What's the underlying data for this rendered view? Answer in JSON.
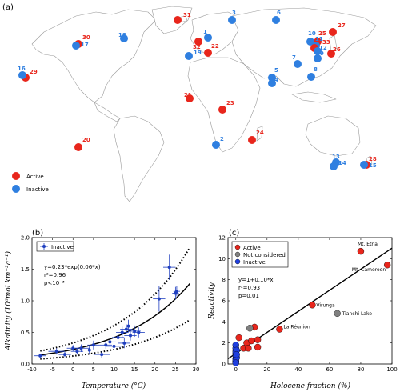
{
  "colors": {
    "active": "#e8261c",
    "inactive": "#2f7fe0",
    "not_considered": "#808080",
    "blue_fit": "#1f3fbf"
  },
  "panel_a": {
    "label": "(a)",
    "legend": {
      "active": "Active",
      "inactive": "Inactive"
    },
    "sites": [
      {
        "id": "1",
        "status": "inactive"
      },
      {
        "id": "2",
        "status": "inactive"
      },
      {
        "id": "3",
        "status": "inactive"
      },
      {
        "id": "4",
        "status": "inactive"
      },
      {
        "id": "5",
        "status": "inactive"
      },
      {
        "id": "6",
        "status": "inactive"
      },
      {
        "id": "7",
        "status": "inactive"
      },
      {
        "id": "8",
        "status": "inactive"
      },
      {
        "id": "9",
        "status": "inactive"
      },
      {
        "id": "10",
        "status": "inactive"
      },
      {
        "id": "11",
        "status": "inactive"
      },
      {
        "id": "12",
        "status": "inactive"
      },
      {
        "id": "13",
        "status": "inactive"
      },
      {
        "id": "14",
        "status": "inactive"
      },
      {
        "id": "15",
        "status": "inactive"
      },
      {
        "id": "16",
        "status": "inactive"
      },
      {
        "id": "17",
        "status": "inactive"
      },
      {
        "id": "18",
        "status": "inactive"
      },
      {
        "id": "19",
        "status": "inactive"
      },
      {
        "id": "20",
        "status": "active"
      },
      {
        "id": "21",
        "status": "active"
      },
      {
        "id": "22",
        "status": "active"
      },
      {
        "id": "23",
        "status": "active"
      },
      {
        "id": "24",
        "status": "active"
      },
      {
        "id": "25",
        "status": "active"
      },
      {
        "id": "26",
        "status": "active"
      },
      {
        "id": "27",
        "status": "active"
      },
      {
        "id": "28",
        "status": "active"
      },
      {
        "id": "29",
        "status": "active"
      },
      {
        "id": "30",
        "status": "active"
      },
      {
        "id": "31",
        "status": "active"
      },
      {
        "id": "32",
        "status": "active"
      },
      {
        "id": "33",
        "status": "active"
      }
    ]
  },
  "chart_data": [
    {
      "type": "scatter",
      "panel": "(b)",
      "xlabel": "Temperature (°C)",
      "ylabel": "Alkalinity (10⁶mol km⁻²a⁻¹)",
      "xlim": [
        -10,
        30
      ],
      "ylim": [
        0,
        2.0
      ],
      "xticks": [
        "-10",
        "-5",
        "0",
        "5",
        "10",
        "15",
        "20",
        "25",
        "30"
      ],
      "yticks": [
        "0.0",
        "0.5",
        "1.0",
        "1.5",
        "2.0"
      ],
      "legend": [
        "Inactive"
      ],
      "legend_position": "top-left",
      "equation_lines": [
        "y=0.23*exp(0.06*x)",
        "r²=0.96",
        "p<10⁻³"
      ],
      "series": [
        {
          "name": "Inactive",
          "points": [
            {
              "x": -8,
              "y": 0.13
            },
            {
              "x": -4,
              "y": 0.2
            },
            {
              "x": -2,
              "y": 0.15
            },
            {
              "x": 0,
              "y": 0.25
            },
            {
              "x": 1,
              "y": 0.2
            },
            {
              "x": 2,
              "y": 0.25
            },
            {
              "x": 4,
              "y": 0.22
            },
            {
              "x": 5,
              "y": 0.3
            },
            {
              "x": 7,
              "y": 0.15
            },
            {
              "x": 8,
              "y": 0.3
            },
            {
              "x": 9,
              "y": 0.35
            },
            {
              "x": 10,
              "y": 0.28
            },
            {
              "x": 11,
              "y": 0.42
            },
            {
              "x": 12,
              "y": 0.5
            },
            {
              "x": 12.5,
              "y": 0.33
            },
            {
              "x": 13,
              "y": 0.55
            },
            {
              "x": 13.5,
              "y": 0.6
            },
            {
              "x": 14,
              "y": 0.45
            },
            {
              "x": 15,
              "y": 0.52
            },
            {
              "x": 16,
              "y": 0.5
            },
            {
              "x": 21,
              "y": 1.03
            },
            {
              "x": 23.5,
              "y": 1.53
            },
            {
              "x": 25,
              "y": 1.12
            },
            {
              "x": 25.3,
              "y": 1.15
            }
          ],
          "xerr": [
            1.5,
            2,
            1.5,
            1.5,
            1.5,
            2,
            2,
            1.5,
            2,
            1.5,
            1.5,
            2,
            1.5,
            1.5,
            1.5,
            1.5,
            1.5,
            1.5,
            1.5,
            1.5,
            1.5,
            1.5,
            0.8,
            0.8
          ],
          "yerr": [
            0.03,
            0.05,
            0.04,
            0.05,
            0.05,
            0.06,
            0.06,
            0.07,
            0.05,
            0.06,
            0.07,
            0.06,
            0.08,
            0.09,
            0.08,
            0.08,
            0.1,
            0.08,
            0.09,
            0.08,
            0.2,
            0.2,
            0.1,
            0.08
          ]
        }
      ],
      "fit": {
        "a": 0.23,
        "b": 0.06,
        "x_range": [
          -8,
          28.5
        ],
        "band_factor_upper": 1.45,
        "band_factor_lower": 0.55
      }
    },
    {
      "type": "scatter",
      "panel": "(c)",
      "xlabel": "Holocene fraction (%)",
      "ylabel": "Reactivity",
      "xlim": [
        -5,
        100
      ],
      "ylim": [
        0,
        12
      ],
      "xticks": [
        "0",
        "20",
        "40",
        "60",
        "80",
        "100"
      ],
      "yticks": [
        "0",
        "2",
        "4",
        "6",
        "8",
        "10",
        "12"
      ],
      "legend": [
        "Active",
        "Not considered",
        "Inactive"
      ],
      "legend_position": "top-left",
      "equation_lines": [
        "y=1+0.10*x",
        "r²=0.93",
        "p=0.01"
      ],
      "series": [
        {
          "name": "Active",
          "points": [
            {
              "x": 2,
              "y": 2.5
            },
            {
              "x": 5,
              "y": 1.5
            },
            {
              "x": 7,
              "y": 2.0
            },
            {
              "x": 8,
              "y": 1.5
            },
            {
              "x": 10,
              "y": 2.2
            },
            {
              "x": 12,
              "y": 3.5
            },
            {
              "x": 14,
              "y": 1.6
            },
            {
              "x": 14,
              "y": 2.3
            },
            {
              "x": 28,
              "y": 3.3
            },
            {
              "x": 49,
              "y": 5.6
            },
            {
              "x": 80,
              "y": 10.7
            },
            {
              "x": 97,
              "y": 9.4
            }
          ]
        },
        {
          "name": "Not considered",
          "points": [
            {
              "x": 9,
              "y": 3.4
            },
            {
              "x": 65,
              "y": 4.8
            }
          ]
        },
        {
          "name": "Inactive",
          "points": [
            {
              "x": 0,
              "y": 0.2
            },
            {
              "x": 0,
              "y": 0.5
            },
            {
              "x": 0,
              "y": 0.8
            },
            {
              "x": 0,
              "y": 1.0
            },
            {
              "x": 0,
              "y": 1.2
            },
            {
              "x": 0,
              "y": 1.5
            },
            {
              "x": 0,
              "y": 1.8
            },
            {
              "x": 0,
              "y": 0.3
            },
            {
              "x": 0.5,
              "y": 0.6
            },
            {
              "x": 0.5,
              "y": 1.3
            },
            {
              "x": 0,
              "y": 0.1
            },
            {
              "x": 0.5,
              "y": 0.9
            }
          ]
        }
      ],
      "annotations": [
        {
          "text": "Mt. Etna",
          "x": 80,
          "y": 10.7
        },
        {
          "text": "Mt. Cameroon",
          "x": 97,
          "y": 9.4
        },
        {
          "text": "Virunga",
          "x": 49,
          "y": 5.6
        },
        {
          "text": "Tianchi Lake",
          "x": 65,
          "y": 4.8
        },
        {
          "text": "La Réunion",
          "x": 28,
          "y": 3.3
        }
      ],
      "fit": {
        "intercept": 1,
        "slope": 0.1,
        "x_range": [
          -5,
          100
        ]
      }
    }
  ]
}
